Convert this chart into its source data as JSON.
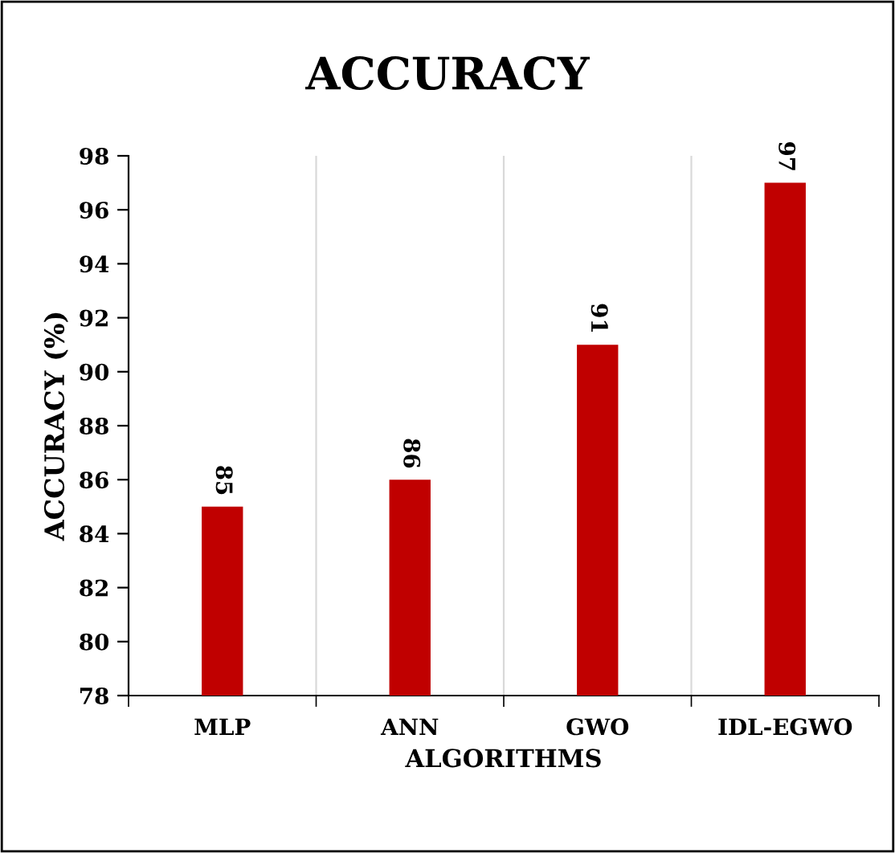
{
  "chart_data": {
    "type": "bar",
    "title": "ACCURACY",
    "xlabel": "ALGORITHMS",
    "ylabel": "ACCURACY (%)",
    "categories": [
      "MLP",
      "ANN",
      "GWO",
      "IDL-EGWO"
    ],
    "values": [
      85,
      86,
      91,
      97
    ],
    "color": "#c00000",
    "ylim": [
      78,
      98
    ],
    "yticks": [
      78,
      80,
      82,
      84,
      86,
      88,
      90,
      92,
      94,
      96,
      98
    ],
    "grid": "x",
    "data_labels": true,
    "legend": false
  }
}
